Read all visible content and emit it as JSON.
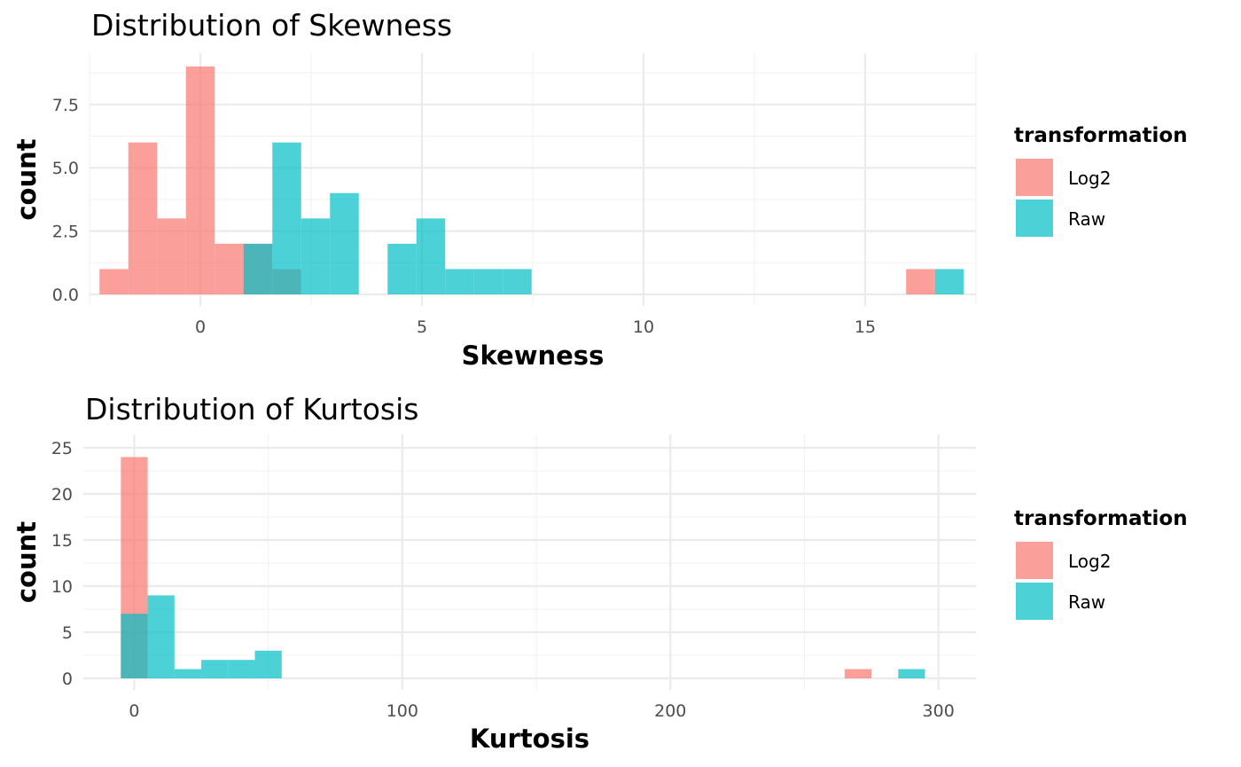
{
  "chart_data": [
    {
      "type": "histogram",
      "title": "Distribution of Skewness",
      "xlabel": "Skewness",
      "ylabel": "count",
      "xlim": [
        -2.5,
        17.5
      ],
      "ylim": [
        0,
        9
      ],
      "x_ticks": [
        0,
        5,
        10,
        15
      ],
      "x_tick_labels": [
        "0",
        "5",
        "10",
        "15"
      ],
      "y_ticks": [
        0,
        2.5,
        5,
        7.5
      ],
      "y_tick_labels": [
        "0.0",
        "2.5",
        "5.0",
        "7.5"
      ],
      "bin_width": 0.65,
      "grid": true,
      "legend_position": "right",
      "legend_title": "transformation",
      "series": [
        {
          "name": "Log2",
          "color": "#F8766D",
          "bins": [
            {
              "x": -2.275,
              "x2": -1.625,
              "count": 1
            },
            {
              "x": -1.625,
              "x2": -0.975,
              "count": 6
            },
            {
              "x": -0.975,
              "x2": -0.325,
              "count": 3
            },
            {
              "x": -0.325,
              "x2": 0.325,
              "count": 9
            },
            {
              "x": 0.325,
              "x2": 0.975,
              "count": 2
            },
            {
              "x": 0.975,
              "x2": 1.625,
              "count": 2
            },
            {
              "x": 1.625,
              "x2": 2.275,
              "count": 1
            },
            {
              "x": 15.925,
              "x2": 16.575,
              "count": 1
            }
          ]
        },
        {
          "name": "Raw",
          "color": "#00BFC4",
          "bins": [
            {
              "x": 0.975,
              "x2": 1.625,
              "count": 2
            },
            {
              "x": 1.625,
              "x2": 2.275,
              "count": 6
            },
            {
              "x": 2.275,
              "x2": 2.925,
              "count": 3
            },
            {
              "x": 2.925,
              "x2": 3.575,
              "count": 4
            },
            {
              "x": 4.225,
              "x2": 4.875,
              "count": 2
            },
            {
              "x": 4.875,
              "x2": 5.525,
              "count": 3
            },
            {
              "x": 5.525,
              "x2": 6.175,
              "count": 1
            },
            {
              "x": 6.175,
              "x2": 6.825,
              "count": 1
            },
            {
              "x": 6.825,
              "x2": 7.475,
              "count": 1
            },
            {
              "x": 16.575,
              "x2": 17.225,
              "count": 1
            }
          ]
        }
      ]
    },
    {
      "type": "histogram",
      "title": "Distribution of Kurtosis",
      "xlabel": "Kurtosis",
      "ylabel": "count",
      "xlim": [
        -19,
        314
      ],
      "ylim": [
        0,
        25
      ],
      "x_ticks": [
        0,
        100,
        200,
        300
      ],
      "x_tick_labels": [
        "0",
        "100",
        "200",
        "300"
      ],
      "y_ticks": [
        0,
        5,
        10,
        15,
        20,
        25
      ],
      "y_tick_labels": [
        "0",
        "5",
        "10",
        "15",
        "20",
        "25"
      ],
      "bin_width": 10,
      "grid": true,
      "legend_position": "right",
      "legend_title": "transformation",
      "series": [
        {
          "name": "Log2",
          "color": "#F8766D",
          "bins": [
            {
              "x": -5,
              "x2": 5,
              "count": 24
            },
            {
              "x": 265,
              "x2": 275,
              "count": 1
            }
          ]
        },
        {
          "name": "Raw",
          "color": "#00BFC4",
          "bins": [
            {
              "x": -5,
              "x2": 5,
              "count": 7
            },
            {
              "x": 5,
              "x2": 15,
              "count": 9
            },
            {
              "x": 15,
              "x2": 25,
              "count": 1
            },
            {
              "x": 25,
              "x2": 35,
              "count": 2
            },
            {
              "x": 35,
              "x2": 45,
              "count": 2
            },
            {
              "x": 45,
              "x2": 55,
              "count": 3
            },
            {
              "x": 285,
              "x2": 295,
              "count": 1
            }
          ]
        }
      ]
    }
  ]
}
